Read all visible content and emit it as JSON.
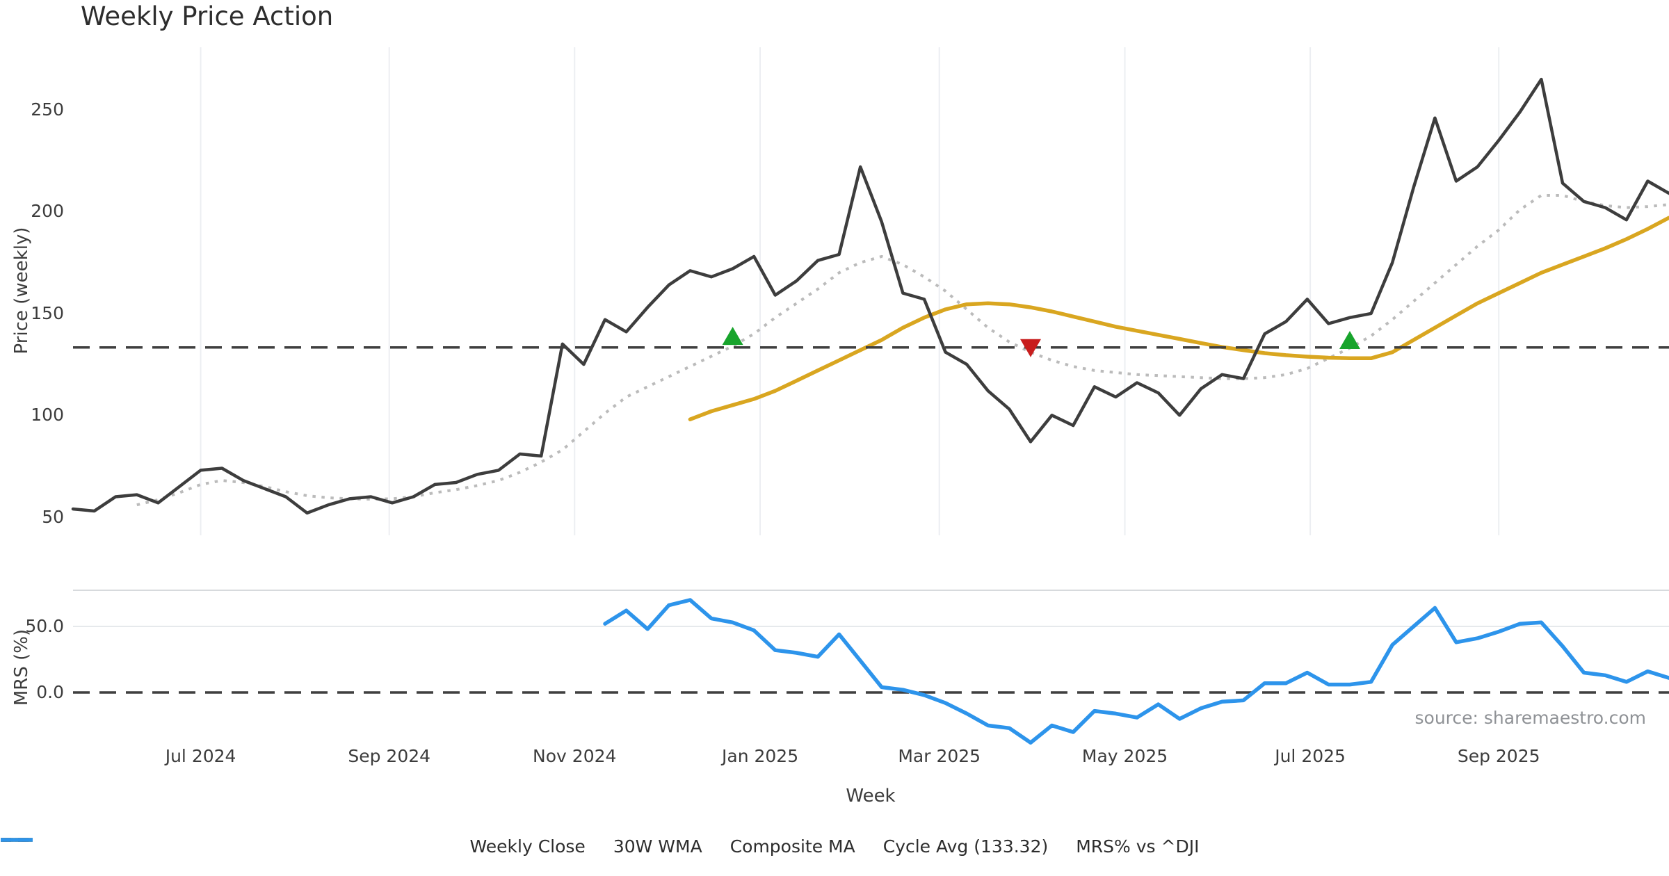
{
  "title": "Weekly Price Action",
  "source_note": "source: sharemaestro.com",
  "colors": {
    "weekly_close": "#3d3d3d",
    "wma_30w": "#d9a620",
    "composite_ma": "#bbbbbb",
    "cycle_avg": "#3f3f3f",
    "mrs": "#2d94eb",
    "marker_up": "#18a42c",
    "marker_down": "#c81e1e",
    "gridline": "#eceef2",
    "panel_border": "#d7dadd",
    "mrs_gridline": "#e6e9ec"
  },
  "cycle_avg_value": 133.32,
  "legend": [
    {
      "label": "Weekly Close",
      "style": "solid",
      "color": "#3d3d3d"
    },
    {
      "label": "30W WMA",
      "style": "solid",
      "color": "#d9a620"
    },
    {
      "label": "Composite MA",
      "style": "dotted",
      "color": "#bbbbbb"
    },
    {
      "label": "Cycle Avg (133.32)",
      "style": "dashed",
      "color": "#3f3f3f"
    },
    {
      "label": "MRS% vs ^DJI",
      "style": "solid",
      "color": "#2d94eb"
    }
  ],
  "chart_data": [
    {
      "type": "line",
      "panel": "price",
      "title": "Weekly Price Action",
      "ylabel": "Price (weekly)",
      "ylim": [
        41,
        282
      ],
      "grid": "vertical-only",
      "y_ticks": [
        {
          "label": "250",
          "value": 250
        },
        {
          "label": "200",
          "value": 200
        },
        {
          "label": "150",
          "value": 150
        },
        {
          "label": "100",
          "value": 100
        },
        {
          "label": "50",
          "value": 50
        }
      ],
      "x_ticks": [
        {
          "label": "Jul 2024",
          "week": 6.0
        },
        {
          "label": "Sep 2024",
          "week": 14.86
        },
        {
          "label": "Nov 2024",
          "week": 23.57
        },
        {
          "label": "Jan 2025",
          "week": 32.29
        },
        {
          "label": "Mar 2025",
          "week": 40.71
        },
        {
          "label": "May 2025",
          "week": 49.43
        },
        {
          "label": "Jul 2025",
          "week": 58.14
        },
        {
          "label": "Sep 2025",
          "week": 67.0
        }
      ],
      "series": [
        {
          "name": "Composite MA",
          "color": "#bbbbbb",
          "style": "dotted",
          "width": 4,
          "start_week": 3,
          "values": [
            56,
            58.5,
            62,
            66,
            68,
            67,
            65,
            62.5,
            60.5,
            59.5,
            59,
            58.8,
            59,
            60,
            62,
            63.5,
            65.5,
            68,
            72,
            77,
            83,
            92,
            101,
            109,
            114,
            119,
            124,
            129,
            134,
            140,
            148,
            155,
            162,
            170,
            175,
            178,
            174,
            168,
            161,
            152,
            143,
            136,
            131,
            127,
            124,
            122,
            121,
            120,
            119.5,
            119,
            118.5,
            118,
            118,
            118.5,
            120,
            123,
            128,
            133,
            139,
            147,
            156,
            165,
            174,
            183,
            191,
            201,
            208,
            208,
            205,
            203,
            202,
            202.5,
            203.5
          ]
        },
        {
          "name": "30W WMA",
          "color": "#d9a620",
          "style": "solid",
          "width": 5.5,
          "start_week": 29,
          "values": [
            98,
            102,
            105,
            108,
            112,
            117,
            122,
            127,
            132,
            137,
            143,
            148,
            152,
            154.5,
            155,
            154.5,
            153,
            151,
            148.5,
            146,
            143.5,
            141.5,
            139.5,
            137.5,
            135.5,
            133.5,
            132,
            130.5,
            129.5,
            128.8,
            128.3,
            128,
            128,
            131,
            137,
            143,
            149,
            155,
            160,
            165,
            170,
            174,
            178,
            182,
            186.5,
            191.5,
            197
          ]
        },
        {
          "name": "Weekly Close",
          "color": "#3d3d3d",
          "style": "solid",
          "width": 4.5,
          "start_week": 0,
          "values": [
            54,
            53,
            60,
            61,
            57,
            65,
            73,
            74,
            68,
            64,
            60,
            52,
            56,
            59,
            60,
            57,
            60,
            66,
            67,
            71,
            73,
            81,
            80,
            135,
            125,
            147,
            141,
            153,
            164,
            171,
            168,
            172,
            178,
            159,
            166,
            176,
            179,
            222,
            195,
            160,
            157,
            131,
            125,
            112,
            103,
            87,
            100,
            95,
            114,
            109,
            116,
            111,
            100,
            113,
            120,
            118,
            140,
            146,
            157,
            145,
            148,
            150,
            175,
            212,
            246,
            215,
            222,
            235,
            249,
            265,
            214,
            205,
            202,
            196,
            215,
            209
          ]
        },
        {
          "name": "Cycle Avg",
          "color": "#3f3f3f",
          "style": "dashed",
          "width": 3.5,
          "constant": 133.32
        }
      ],
      "markers": [
        {
          "shape": "triangle-up",
          "color": "#18a42c",
          "week": 31,
          "price": 139
        },
        {
          "shape": "triangle-down",
          "color": "#c81e1e",
          "week": 45,
          "price": 133
        },
        {
          "shape": "triangle-up",
          "color": "#18a42c",
          "week": 60,
          "price": 137
        }
      ]
    },
    {
      "type": "line",
      "panel": "mrs",
      "ylabel": "MRS (%)",
      "xlabel": "Week",
      "ylim": [
        -40,
        77
      ],
      "zero_line_dashed": true,
      "y_ticks": [
        {
          "label": "50.0",
          "value": 50
        },
        {
          "label": "0.0",
          "value": 0
        }
      ],
      "series": [
        {
          "name": "MRS% vs ^DJI",
          "color": "#2d94eb",
          "style": "solid",
          "width": 5.5,
          "start_week": 25,
          "values": [
            52,
            62,
            48,
            66,
            70,
            56,
            53,
            47,
            32,
            30,
            27,
            44,
            24,
            4,
            2,
            -2,
            -8,
            -16,
            -25,
            -27,
            -38,
            -25,
            -30,
            -14,
            -16,
            -19,
            -9,
            -20,
            -12,
            -7,
            -6,
            7,
            7,
            15,
            6,
            6,
            8,
            36,
            50,
            64,
            38,
            41,
            46,
            52,
            53,
            35,
            15,
            13,
            8,
            16,
            11
          ]
        }
      ]
    }
  ]
}
